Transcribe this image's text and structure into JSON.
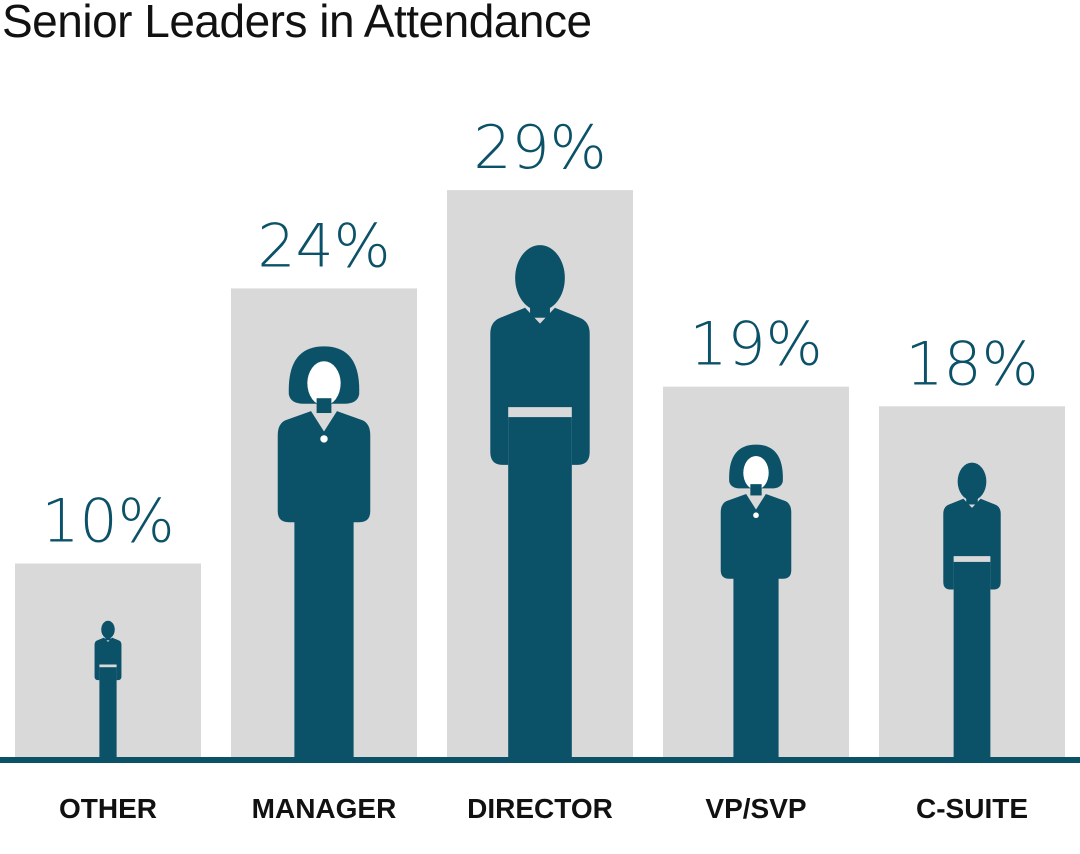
{
  "chart_data": {
    "type": "bar",
    "title": "Senior Leaders in Attendance",
    "categories": [
      "OTHER",
      "MANAGER",
      "DIRECTOR",
      "VP/SVP",
      "C-SUITE"
    ],
    "values": [
      10,
      24,
      29,
      19,
      18
    ],
    "value_labels": [
      "10%",
      "24%",
      "29%",
      "19%",
      "18%"
    ],
    "figures": [
      "man",
      "woman",
      "man",
      "woman",
      "man"
    ],
    "ylim": [
      0,
      35
    ],
    "grid": false,
    "legend": "none"
  },
  "colors": {
    "bar": "#d9d9d9",
    "figure": "#0b5168",
    "label": "#0b5168",
    "axis": "#0b5168",
    "category_text": "#111111",
    "title_text": "#111111"
  }
}
